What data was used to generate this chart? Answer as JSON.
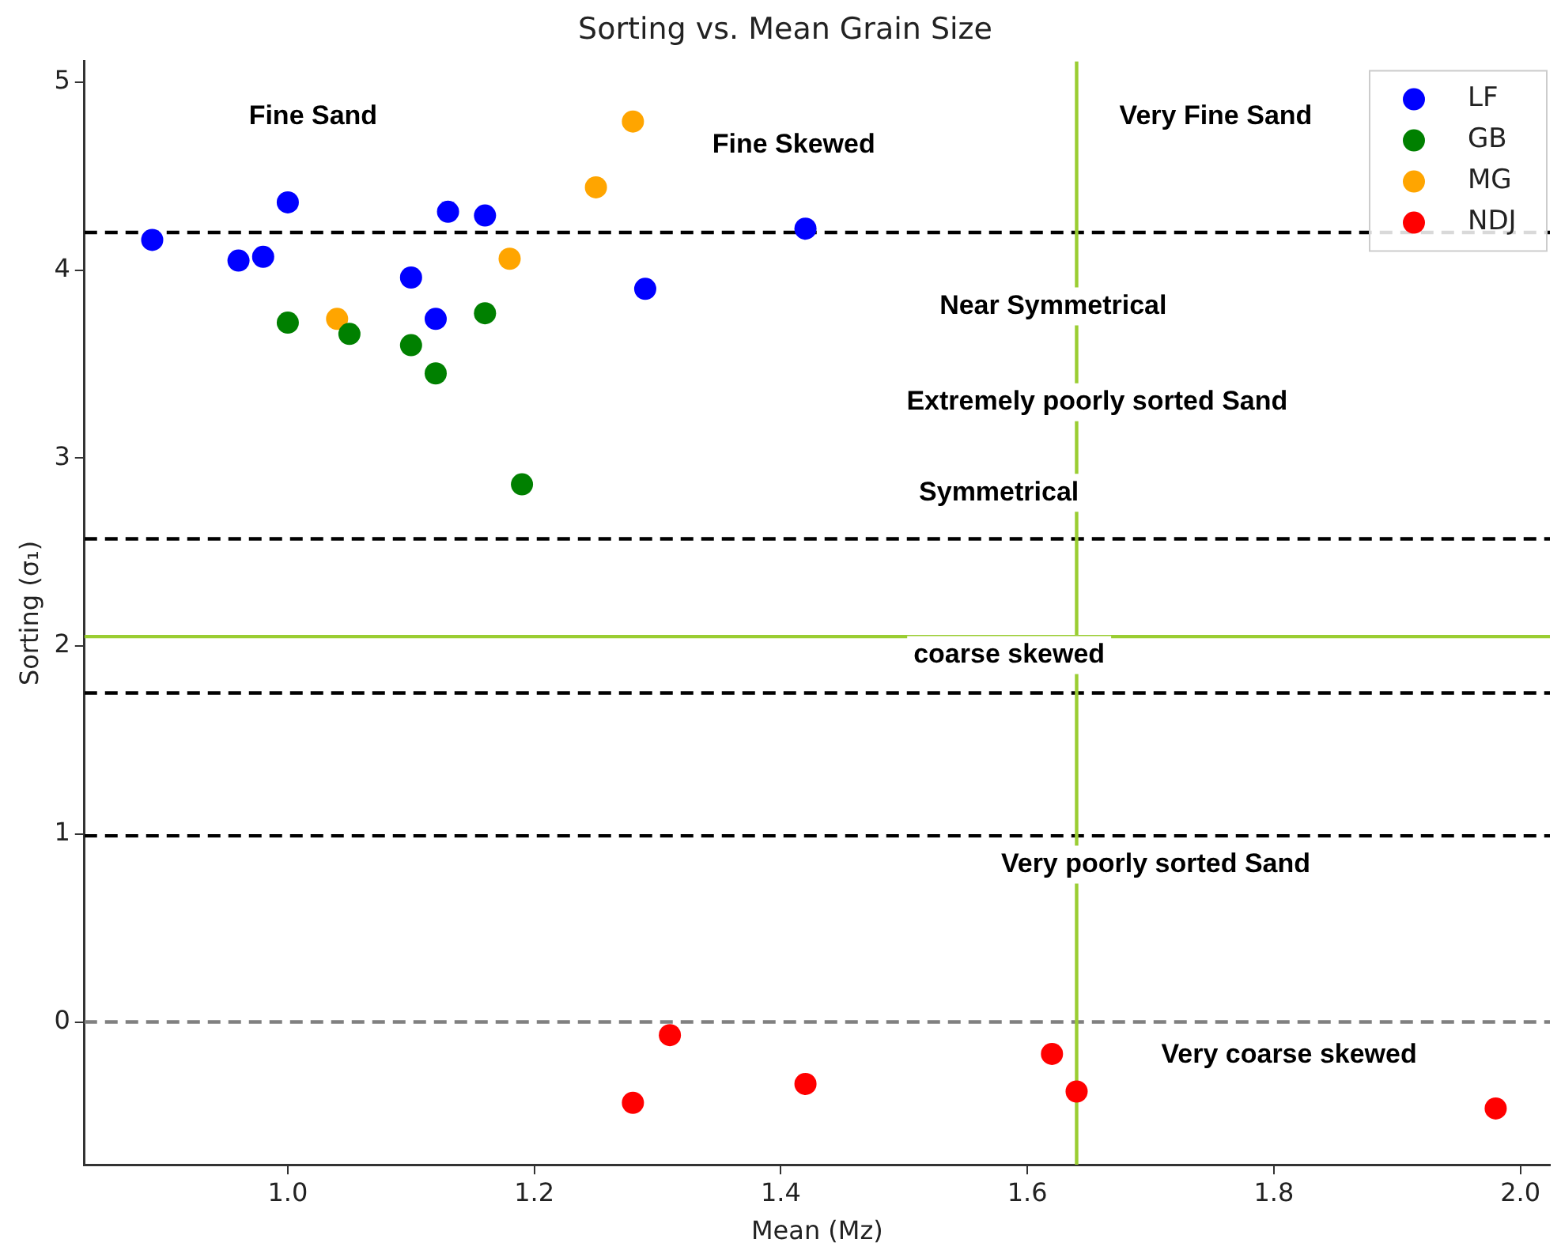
{
  "chart_data": {
    "type": "scatter",
    "title": "Sorting vs. Mean Grain Size",
    "xlabel": "Mean (Mz)",
    "ylabel": "Sorting (σ₁)",
    "xlim": [
      0.835,
      2.024
    ],
    "ylim": [
      -0.76,
      5.11
    ],
    "xticks": [
      {
        "value": 1,
        "label": "1.0"
      },
      {
        "value": 1.2,
        "label": "1.2"
      },
      {
        "value": 1.4,
        "label": "1.4"
      },
      {
        "value": 1.6,
        "label": "1.6"
      },
      {
        "value": 1.8,
        "label": "1.8"
      },
      {
        "value": 2,
        "label": "2.0"
      }
    ],
    "yticks": [
      0,
      1,
      2,
      3,
      4,
      5
    ],
    "series": [
      {
        "name": "LF",
        "color": "#0000ff",
        "x": [
          0.89,
          0.96,
          0.98,
          1.0,
          1.1,
          1.13,
          1.12,
          1.16,
          1.29,
          1.42
        ],
        "values": [
          4.16,
          4.05,
          4.07,
          4.36,
          3.96,
          4.31,
          3.74,
          4.29,
          3.9,
          4.22
        ]
      },
      {
        "name": "GB",
        "color": "#008000",
        "x": [
          1.0,
          1.05,
          1.1,
          1.12,
          1.16,
          1.19
        ],
        "values": [
          3.72,
          3.66,
          3.6,
          3.45,
          3.77,
          2.86
        ]
      },
      {
        "name": "MG",
        "color": "#ffa500",
        "x": [
          1.04,
          1.18,
          1.25,
          1.28
        ],
        "values": [
          3.74,
          4.06,
          4.44,
          4.79
        ]
      },
      {
        "name": "NDJ",
        "color": "#ff0000",
        "x": [
          1.31,
          1.28,
          1.42,
          1.62,
          1.64,
          1.98
        ],
        "values": [
          -0.07,
          -0.43,
          -0.33,
          -0.17,
          -0.37,
          -0.46
        ]
      }
    ],
    "marker": "circle",
    "legend": "top right",
    "grid": false,
    "ref_lines": [
      {
        "axis": "y",
        "value": 4.2,
        "color": "#000000",
        "line_style": "dashed"
      },
      {
        "axis": "y",
        "value": 2.57,
        "color": "#000000",
        "line_style": "dashed"
      },
      {
        "axis": "y",
        "value": 1.75,
        "color": "#000000",
        "line_style": "dashed"
      },
      {
        "axis": "y",
        "value": 0.99,
        "color": "#000000",
        "line_style": "dashed"
      },
      {
        "axis": "y",
        "value": 0,
        "color": "#808080",
        "line_style": "dashed"
      },
      {
        "axis": "y",
        "value": 2.05,
        "color": "#9acd32",
        "line_style": "solid"
      },
      {
        "axis": "x",
        "value": 1.64,
        "color": "#9acd32",
        "line_style": "solid"
      }
    ],
    "annotations": [
      "Fine Sand",
      "Fine Skewed",
      "Very Fine Sand",
      "Near Symmetrical",
      "Extremely poorly sorted Sand",
      "Symmetrical",
      "coarse skewed",
      "Very poorly sorted Sand",
      "Very coarse skewed"
    ]
  }
}
